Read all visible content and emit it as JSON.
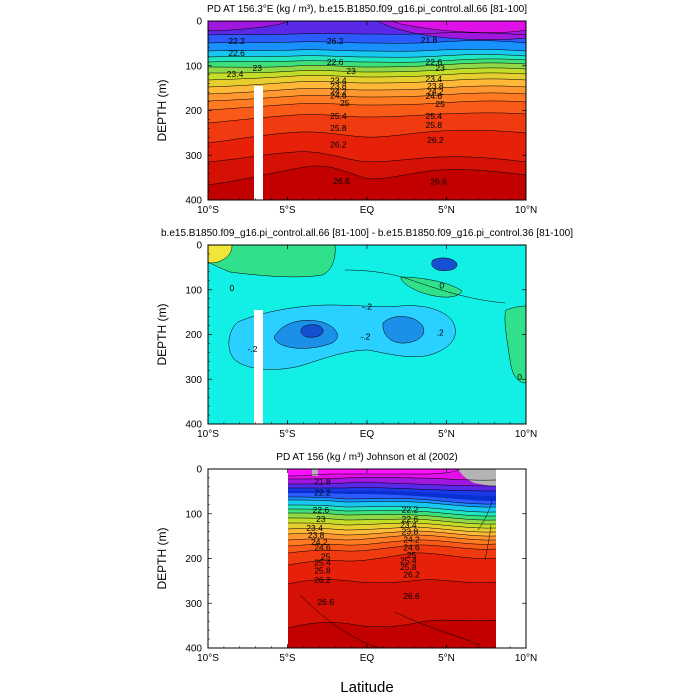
{
  "figure": {
    "shared_xlabel": "Latitude",
    "panel_ylabel": "DEPTH (m)"
  },
  "chart_data": [
    {
      "type": "contour",
      "title": "PD AT 156.3°E (kg / m³), b.e15.B1850.f09_g16.pi_control.all.66 [81-100]",
      "ylabel": "DEPTH (m)",
      "x_ticks": [
        "10°S",
        "5°S",
        "EQ",
        "5°N",
        "10°N"
      ],
      "x_range": [
        -10,
        10
      ],
      "y_ticks": [
        "0",
        "100",
        "200",
        "300",
        "400"
      ],
      "y_range": [
        0,
        400
      ],
      "y_reversed": true,
      "missing_column": {
        "x_start": -7.1,
        "x_end": -6.6,
        "y_start": 145,
        "y_end": 400
      },
      "levels": [
        21.8,
        22.2,
        22.6,
        23,
        23.4,
        23.8,
        24.2,
        24.6,
        25,
        25.4,
        25.8,
        26.2,
        26.6
      ],
      "contour_labels": [
        {
          "text": "22.2",
          "x": -8.2,
          "y": 45
        },
        {
          "text": "22.6",
          "x": -8.2,
          "y": 72
        },
        {
          "text": "23",
          "x": -6.9,
          "y": 105
        },
        {
          "text": "23.4",
          "x": -8.3,
          "y": 118
        },
        {
          "text": "22.6",
          "x": -2.0,
          "y": 92
        },
        {
          "text": "23",
          "x": -1.0,
          "y": 112
        },
        {
          "text": "23.4",
          "x": -1.8,
          "y": 133
        },
        {
          "text": "23.8",
          "x": -1.8,
          "y": 145
        },
        {
          "text": "24.2",
          "x": -1.8,
          "y": 157
        },
        {
          "text": "24.6",
          "x": -1.8,
          "y": 167
        },
        {
          "text": "25",
          "x": -1.4,
          "y": 183
        },
        {
          "text": "25.4",
          "x": -1.8,
          "y": 212
        },
        {
          "text": "25.8",
          "x": -1.8,
          "y": 239
        },
        {
          "text": "26.2",
          "x": -1.8,
          "y": 276
        },
        {
          "text": "26.2",
          "x": -2.0,
          "y": 45
        },
        {
          "text": "26.6",
          "x": -1.6,
          "y": 357
        },
        {
          "text": "21.8",
          "x": 3.9,
          "y": 42
        },
        {
          "text": "22.6",
          "x": 4.2,
          "y": 92
        },
        {
          "text": "23",
          "x": 4.6,
          "y": 105
        },
        {
          "text": "23.4",
          "x": 4.2,
          "y": 130
        },
        {
          "text": "23.8",
          "x": 4.3,
          "y": 145
        },
        {
          "text": "24.2",
          "x": 4.3,
          "y": 157
        },
        {
          "text": "24.6",
          "x": 4.2,
          "y": 168
        },
        {
          "text": "25",
          "x": 4.6,
          "y": 186
        },
        {
          "text": "25.4",
          "x": 4.2,
          "y": 212
        },
        {
          "text": "25.8",
          "x": 4.2,
          "y": 232
        },
        {
          "text": "26.2",
          "x": 4.3,
          "y": 266
        },
        {
          "text": "26.6",
          "x": 4.5,
          "y": 359
        }
      ]
    },
    {
      "type": "contour",
      "title": "b.e15.B1850.f09_g16.pi_control.all.66 [81-100] - b.e15.B1850.f09_g16.pi_control.36 [81-100]",
      "ylabel": "DEPTH (m)",
      "x_ticks": [
        "10°S",
        "5°S",
        "EQ",
        "5°N",
        "10°N"
      ],
      "x_range": [
        -10,
        10
      ],
      "y_ticks": [
        "0",
        "100",
        "200",
        "300",
        "400"
      ],
      "y_range": [
        0,
        400
      ],
      "y_reversed": true,
      "missing_column": {
        "x_start": -7.1,
        "x_end": -6.6,
        "y_start": 145,
        "y_end": 400
      },
      "levels": [
        -0.4,
        -0.2,
        0,
        0.2
      ],
      "contour_labels": [
        {
          "text": "0",
          "x": -8.5,
          "y": 96
        },
        {
          "text": "-.2",
          "x": 0.0,
          "y": 137
        },
        {
          "text": "-.2",
          "x": -0.1,
          "y": 205
        },
        {
          "text": "-.2",
          "x": -7.2,
          "y": 232
        },
        {
          "text": ".2",
          "x": 4.6,
          "y": 195
        },
        {
          "text": "0",
          "x": 4.7,
          "y": 90
        },
        {
          "text": "0",
          "x": 9.6,
          "y": 295
        }
      ]
    },
    {
      "type": "contour",
      "title": "PD AT 156 (kg / m³) Johnson et al (2002)",
      "ylabel": "DEPTH (m)",
      "xlabel": "Latitude",
      "x_ticks": [
        "10°S",
        "5°S",
        "EQ",
        "5°N",
        "10°N"
      ],
      "x_range": [
        -10,
        10
      ],
      "y_ticks": [
        "0",
        "100",
        "200",
        "300",
        "400"
      ],
      "y_range": [
        0,
        400
      ],
      "y_reversed": true,
      "data_extent_x": [
        -5,
        8
      ],
      "levels": [
        21.8,
        22.2,
        22.6,
        23,
        23.4,
        23.8,
        24.2,
        24.6,
        25,
        25.4,
        25.8,
        26.2,
        26.6
      ],
      "contour_labels": [
        {
          "text": "21.8",
          "x": -2.8,
          "y": 28
        },
        {
          "text": "22.2",
          "x": -2.8,
          "y": 52
        },
        {
          "text": "22.6",
          "x": -2.9,
          "y": 92
        },
        {
          "text": "23",
          "x": -2.9,
          "y": 112
        },
        {
          "text": "23.4",
          "x": -3.3,
          "y": 132
        },
        {
          "text": "23.8",
          "x": -3.2,
          "y": 147
        },
        {
          "text": "24.2",
          "x": -3.0,
          "y": 163
        },
        {
          "text": "24.6",
          "x": -2.8,
          "y": 175
        },
        {
          "text": "25",
          "x": -2.6,
          "y": 195
        },
        {
          "text": "25.4",
          "x": -2.8,
          "y": 209
        },
        {
          "text": "25.8",
          "x": -2.8,
          "y": 227
        },
        {
          "text": "26.2",
          "x": -2.8,
          "y": 248
        },
        {
          "text": "26.6",
          "x": -2.6,
          "y": 297
        },
        {
          "text": "22.2",
          "x": 2.7,
          "y": 90
        },
        {
          "text": "22.6",
          "x": 2.7,
          "y": 112
        },
        {
          "text": "23.4",
          "x": 2.6,
          "y": 125
        },
        {
          "text": "23.8",
          "x": 2.7,
          "y": 140
        },
        {
          "text": "24.2",
          "x": 2.8,
          "y": 157
        },
        {
          "text": "24.6",
          "x": 2.8,
          "y": 175
        },
        {
          "text": "25",
          "x": 2.8,
          "y": 192
        },
        {
          "text": "25.4",
          "x": 2.6,
          "y": 204
        },
        {
          "text": "25.8",
          "x": 2.6,
          "y": 219
        },
        {
          "text": "26.2",
          "x": 2.8,
          "y": 236
        },
        {
          "text": "26.6",
          "x": 2.8,
          "y": 284
        }
      ]
    }
  ]
}
